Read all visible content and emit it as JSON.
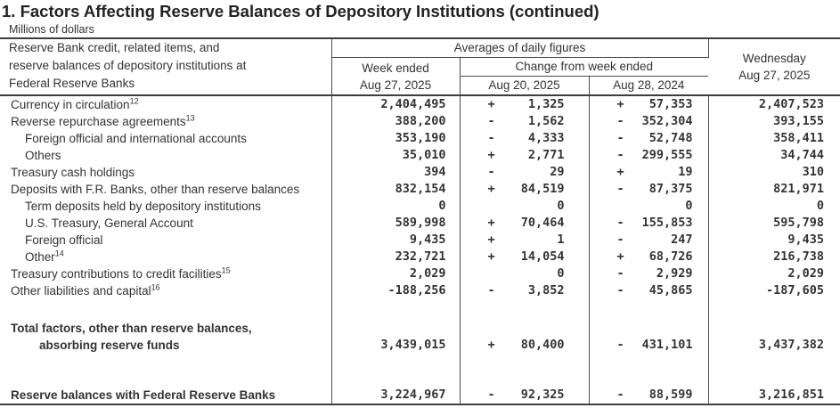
{
  "title": "1. Factors Affecting Reserve Balances of Depository Institutions (continued)",
  "subtitle": "Millions of dollars",
  "header": {
    "stub_line1": "Reserve Bank credit, related items, and",
    "stub_line2": "reserve balances of depository institutions at",
    "stub_line3": "Federal Reserve Banks",
    "group_averages": "Averages of daily figures",
    "week_ended_line1": "Week ended",
    "week_ended_line2": "Aug 27, 2025",
    "group_change": "Change from week ended",
    "change_col1": "Aug 20, 2025",
    "change_col2": "Aug 28, 2024",
    "wednesday_line1": "Wednesday",
    "wednesday_line2": "Aug 27, 2025"
  },
  "table": {
    "rows": [
      {
        "label": "Currency in circulation",
        "sup": "12",
        "indent": 0,
        "bold": false,
        "cells": [
          {
            "s": "",
            "v": "2,404,495"
          },
          {
            "s": "+",
            "v": "1,325"
          },
          {
            "s": "+",
            "v": "57,353"
          },
          {
            "s": "",
            "v": "2,407,523"
          }
        ]
      },
      {
        "label": "Reverse repurchase agreements",
        "sup": "13",
        "indent": 0,
        "bold": false,
        "cells": [
          {
            "s": "",
            "v": "388,200"
          },
          {
            "s": "-",
            "v": "1,562"
          },
          {
            "s": "-",
            "v": "352,304"
          },
          {
            "s": "",
            "v": "393,155"
          }
        ]
      },
      {
        "label": "Foreign official and international accounts",
        "sup": "",
        "indent": 1,
        "bold": false,
        "cells": [
          {
            "s": "",
            "v": "353,190"
          },
          {
            "s": "-",
            "v": "4,333"
          },
          {
            "s": "-",
            "v": "52,748"
          },
          {
            "s": "",
            "v": "358,411"
          }
        ]
      },
      {
        "label": "Others",
        "sup": "",
        "indent": 1,
        "bold": false,
        "cells": [
          {
            "s": "",
            "v": "35,010"
          },
          {
            "s": "+",
            "v": "2,771"
          },
          {
            "s": "-",
            "v": "299,555"
          },
          {
            "s": "",
            "v": "34,744"
          }
        ]
      },
      {
        "label": "Treasury cash holdings",
        "sup": "",
        "indent": 0,
        "bold": false,
        "cells": [
          {
            "s": "",
            "v": "394"
          },
          {
            "s": "-",
            "v": "29"
          },
          {
            "s": "+",
            "v": "19"
          },
          {
            "s": "",
            "v": "310"
          }
        ]
      },
      {
        "label": "Deposits with F.R. Banks, other than reserve balances",
        "sup": "",
        "indent": 0,
        "bold": false,
        "cells": [
          {
            "s": "",
            "v": "832,154"
          },
          {
            "s": "+",
            "v": "84,519"
          },
          {
            "s": "-",
            "v": "87,375"
          },
          {
            "s": "",
            "v": "821,971"
          }
        ]
      },
      {
        "label": "Term deposits held by depository institutions",
        "sup": "",
        "indent": 1,
        "bold": false,
        "cells": [
          {
            "s": "",
            "v": "0"
          },
          {
            "s": "",
            "v": "0"
          },
          {
            "s": "",
            "v": "0"
          },
          {
            "s": "",
            "v": "0"
          }
        ]
      },
      {
        "label": "U.S. Treasury, General Account",
        "sup": "",
        "indent": 1,
        "bold": false,
        "cells": [
          {
            "s": "",
            "v": "589,998"
          },
          {
            "s": "+",
            "v": "70,464"
          },
          {
            "s": "-",
            "v": "155,853"
          },
          {
            "s": "",
            "v": "595,798"
          }
        ]
      },
      {
        "label": "Foreign official",
        "sup": "",
        "indent": 1,
        "bold": false,
        "cells": [
          {
            "s": "",
            "v": "9,435"
          },
          {
            "s": "+",
            "v": "1"
          },
          {
            "s": "-",
            "v": "247"
          },
          {
            "s": "",
            "v": "9,435"
          }
        ]
      },
      {
        "label": "Other",
        "sup": "14",
        "indent": 1,
        "bold": false,
        "cells": [
          {
            "s": "",
            "v": "232,721"
          },
          {
            "s": "+",
            "v": "14,054"
          },
          {
            "s": "+",
            "v": "68,726"
          },
          {
            "s": "",
            "v": "216,738"
          }
        ]
      },
      {
        "label": "Treasury contributions to credit facilities",
        "sup": "15",
        "indent": 0,
        "bold": false,
        "cells": [
          {
            "s": "",
            "v": "2,029"
          },
          {
            "s": "",
            "v": "0"
          },
          {
            "s": "-",
            "v": "2,929"
          },
          {
            "s": "",
            "v": "2,029"
          }
        ]
      },
      {
        "label": "Other liabilities and capital",
        "sup": "16",
        "indent": 0,
        "bold": false,
        "cells": [
          {
            "s": "",
            "v": "-188,256"
          },
          {
            "s": "-",
            "v": "3,852"
          },
          {
            "s": "-",
            "v": "45,865"
          },
          {
            "s": "",
            "v": "-187,605"
          }
        ]
      },
      {
        "spacer": true,
        "h": 23
      },
      {
        "label": "Total factors, other than reserve balances,",
        "label2": "absorbing reserve funds",
        "sup": "",
        "indent": 0,
        "bold": true,
        "cells": [
          {
            "s": "",
            "v": "3,439,015"
          },
          {
            "s": "+",
            "v": "80,400"
          },
          {
            "s": "-",
            "v": "431,101"
          },
          {
            "s": "",
            "v": "3,437,382"
          }
        ]
      },
      {
        "spacer": true,
        "h": 37
      },
      {
        "label": "Reserve balances with Federal Reserve Banks",
        "sup": "",
        "indent": 0,
        "bold": true,
        "cells": [
          {
            "s": "",
            "v": "3,224,967"
          },
          {
            "s": "-",
            "v": "92,325"
          },
          {
            "s": "-",
            "v": "88,599"
          },
          {
            "s": "",
            "v": "3,216,851"
          }
        ]
      }
    ]
  }
}
